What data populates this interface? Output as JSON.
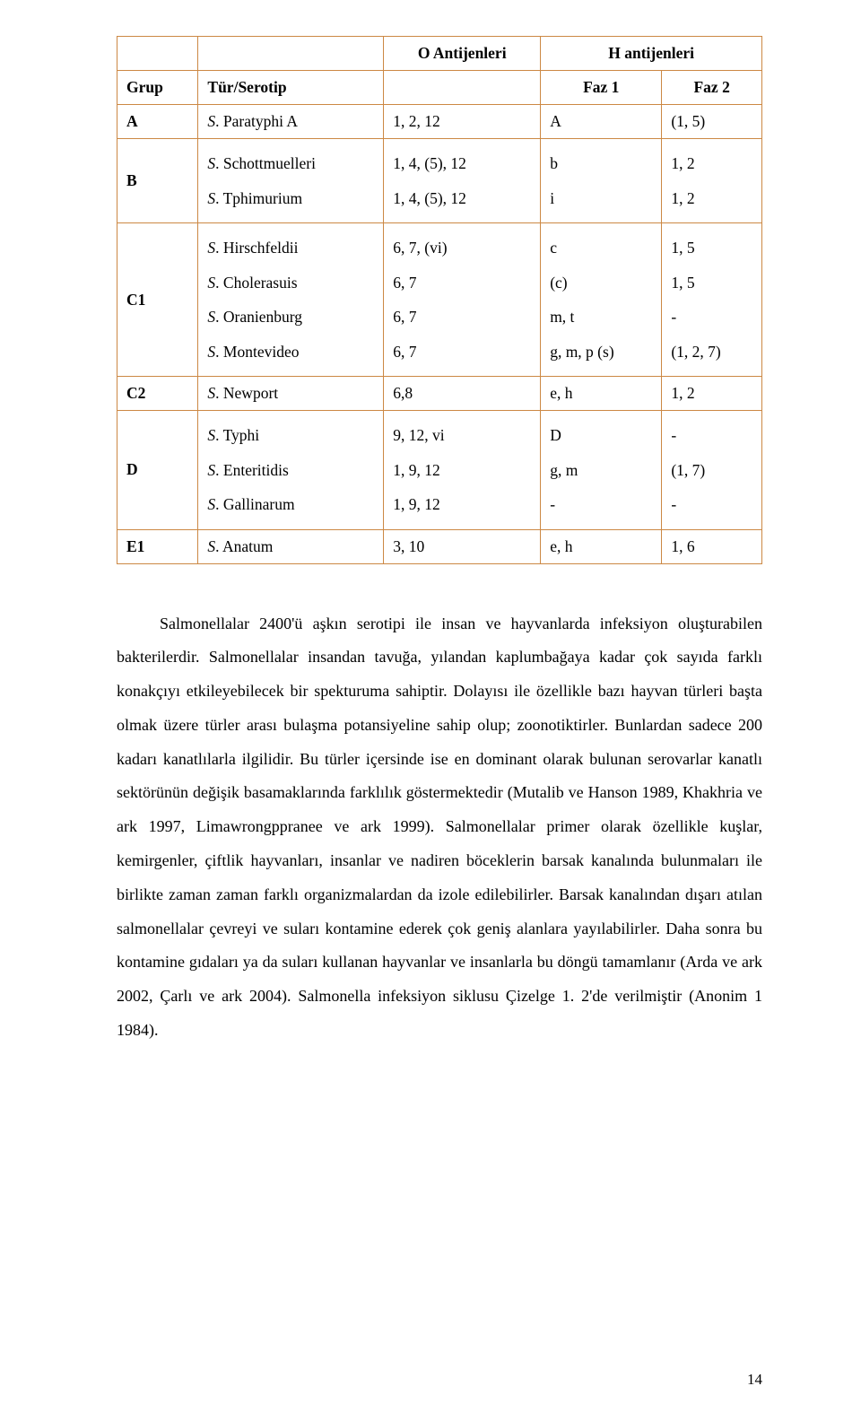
{
  "table": {
    "border_color": "#cc8844",
    "font_family": "Times New Roman",
    "font_size_pt": 13,
    "header": {
      "col_o": "O Antijenleri",
      "col_h": "H antijenleri",
      "grup": "Grup",
      "tur": "Tür/Serotip",
      "faz1": "Faz 1",
      "faz2": "Faz 2"
    },
    "rows": {
      "A": {
        "grup": "A",
        "tur_prefix": "S",
        "tur_name": ". Paratyphi A",
        "o": "1, 2, 12",
        "faz1": "A",
        "faz2": "(1, 5)"
      },
      "B": {
        "grup": "B",
        "tur_prefix1": "S",
        "tur_name1": ". Schottmuelleri",
        "tur_prefix2": "S",
        "tur_name2": ". Tphimurium",
        "o1": "1, 4, (5), 12",
        "o2": "1, 4, (5), 12",
        "f1_1": "b",
        "f1_2": "i",
        "f2_1": "1, 2",
        "f2_2": "1, 2"
      },
      "C1": {
        "grup": "C1",
        "tur_prefix1": "S",
        "tur_name1": ". Hirschfeldii",
        "tur_prefix2": "S",
        "tur_name2": ". Cholerasuis",
        "tur_prefix3": "S",
        "tur_name3": ". Oranienburg",
        "tur_prefix4": "S",
        "tur_name4": ". Montevideo",
        "o1": "6, 7, (vi)",
        "o2": "6, 7",
        "o3": "6, 7",
        "o4": "6, 7",
        "f1_1": "c",
        "f1_2": "(c)",
        "f1_3": "m, t",
        "f1_4": "g, m, p (s)",
        "f2_1": "1, 5",
        "f2_2": "1, 5",
        "f2_3": "-",
        "f2_4": "(1, 2, 7)"
      },
      "C2": {
        "grup": "C2",
        "tur_prefix": "S",
        "tur_name": ". Newport",
        "o": "6,8",
        "faz1": "e, h",
        "faz2": "1, 2"
      },
      "D": {
        "grup": "D",
        "tur_prefix1": "S",
        "tur_name1": ". Typhi",
        "tur_prefix2": "S",
        "tur_name2": ". Enteritidis",
        "tur_prefix3": "S",
        "tur_name3": ". Gallinarum",
        "o1": "9, 12, vi",
        "o2": "1, 9, 12",
        "o3": "1, 9, 12",
        "f1_1": "D",
        "f1_2": "g, m",
        "f1_3": "-",
        "f2_1": "-",
        "f2_2": "(1, 7)",
        "f2_3": "-"
      },
      "E1": {
        "grup": "E1",
        "tur_prefix": "S",
        "tur_name": ". Anatum",
        "o": "3, 10",
        "faz1": "e, h",
        "faz2": "1, 6"
      }
    }
  },
  "prose": {
    "font_size_pt": 13.5,
    "line_height": 2.1,
    "text": "Salmonellalar 2400'ü aşkın serotipi ile insan ve hayvanlarda infeksiyon oluşturabilen bakterilerdir. Salmonellalar insandan tavuğa, yılandan kaplumbağaya kadar çok sayıda farklı konakçıyı etkileyebilecek bir spekturuma sahiptir. Dolayısı ile özellikle bazı hayvan türleri başta olmak üzere türler arası bulaşma potansiyeline sahip olup; zoonotiktirler. Bunlardan sadece 200 kadarı kanatlılarla ilgilidir. Bu türler içersinde ise en dominant olarak bulunan serovarlar kanatlı sektörünün değişik basamaklarında farklılık göstermektedir (Mutalib ve Hanson 1989, Khakhria ve ark 1997, Limawrongppranee ve ark 1999). Salmonellalar primer olarak özellikle kuşlar, kemirgenler, çiftlik hayvanları, insanlar ve nadiren böceklerin barsak kanalında bulunmaları ile birlikte zaman zaman farklı organizmalardan da izole edilebilirler. Barsak kanalından dışarı atılan salmonellalar çevreyi ve suları kontamine ederek çok geniş alanlara yayılabilirler. Daha sonra bu kontamine gıdaları ya da suları kullanan hayvanlar ve insanlarla bu döngü tamamlanır (Arda ve ark 2002, Çarlı ve ark 2004). Salmonella infeksiyon siklusu Çizelge 1. 2'de verilmiştir (Anonim 1 1984)."
  },
  "page_number": "14"
}
